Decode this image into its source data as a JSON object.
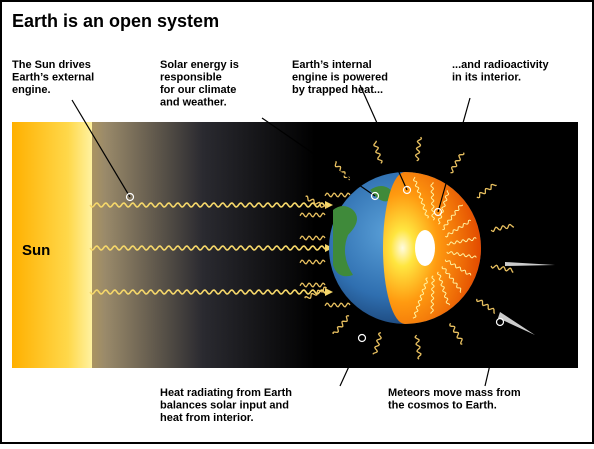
{
  "title": "Earth is an open system",
  "top_labels": [
    {
      "lines": [
        "The Sun drives",
        "Earth’s external",
        "engine."
      ]
    },
    {
      "lines": [
        "Solar energy is",
        "responsible",
        "for our climate",
        "and weather."
      ]
    },
    {
      "lines": [
        "Earth’s internal",
        "engine is powered",
        "by trapped heat..."
      ]
    },
    {
      "lines": [
        "...and radioactivity",
        "in its interior."
      ]
    }
  ],
  "sun_label": "Sun",
  "bottom_labels": [
    {
      "lines": [
        "Heat radiating from Earth",
        "balances solar input and",
        "heat from interior."
      ]
    },
    {
      "lines": [
        "Meteors move mass from",
        "the cosmos to Earth."
      ]
    }
  ]
}
